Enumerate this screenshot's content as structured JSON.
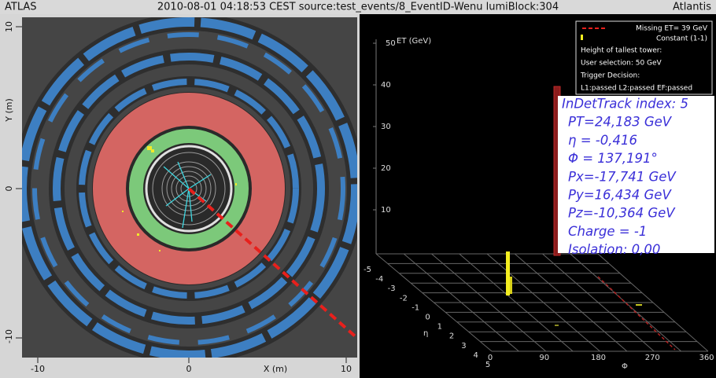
{
  "header": {
    "left": "ATLAS",
    "center": "2010-08-01 04:18:53 CEST source:test_events/8_EventID-Wenu lumiBlock:304",
    "right": "Atlantis"
  },
  "xy_view": {
    "y_label": "Y (m)",
    "y_ticks": [
      "10",
      "0",
      "-10"
    ],
    "x_label": "X (m)",
    "x_ticks": [
      "-10",
      "0",
      "10"
    ]
  },
  "lego_view": {
    "et_label": "ET (GeV)",
    "et_ticks": [
      "50",
      "40",
      "30",
      "20",
      "10"
    ],
    "eta_label": "η",
    "eta_ticks": [
      "-5",
      "-4",
      "-3",
      "-2",
      "-1",
      "0",
      "1",
      "2",
      "3",
      "4",
      "5"
    ],
    "phi_label": "Φ",
    "phi_ticks": [
      "0",
      "90",
      "180",
      "270",
      "360"
    ]
  },
  "legend": {
    "missing_et": "Missing ET= 39 GeV",
    "constant": "Constant (1-1)",
    "lines": [
      "Height of tallest tower:",
      "User selection: 50 GeV",
      "Trigger Decision:",
      "L1:passed L2:passed EF:passed"
    ]
  },
  "track_info": {
    "lines": [
      "InDetTrack index: 5",
      "PT=24,183 GeV",
      "η = -0,416",
      "Φ = 137,191°",
      "Px=-17,741 GeV",
      "Py=16,434 GeV",
      "Pz=-10,364 GeV",
      "Charge = -1",
      "Isolation: 0,00"
    ]
  }
}
